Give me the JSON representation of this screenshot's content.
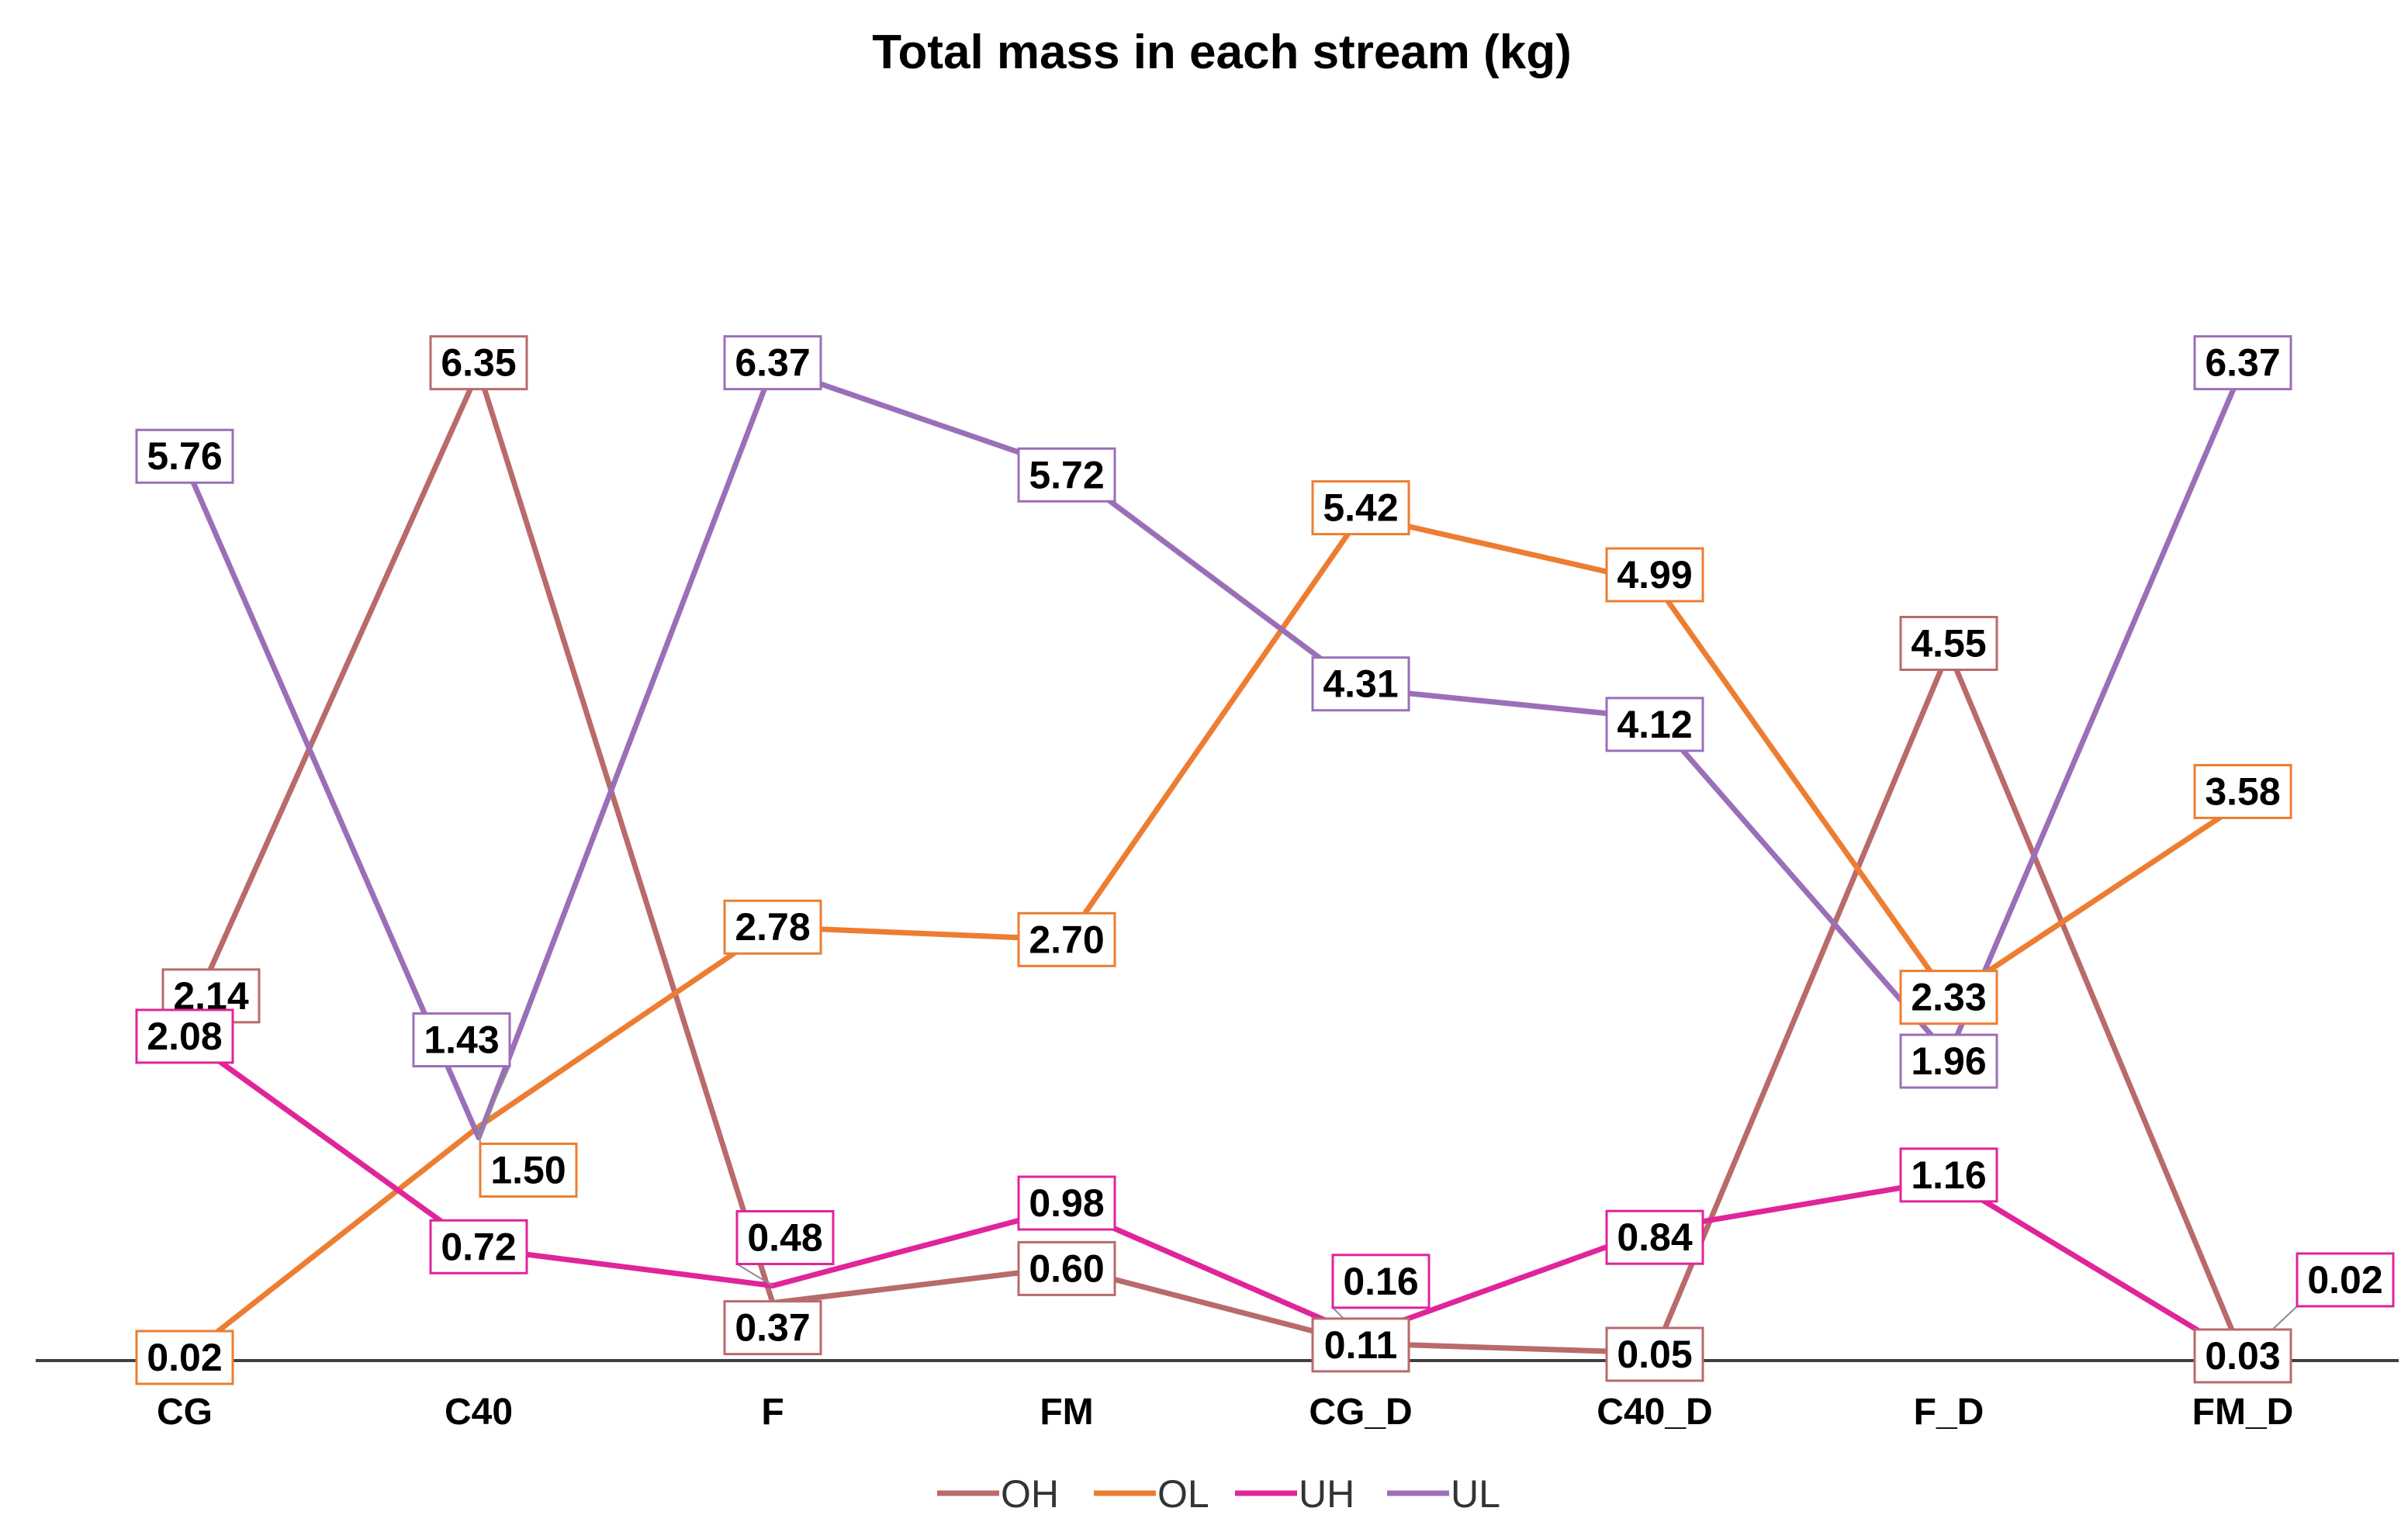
{
  "chart_data": {
    "type": "line",
    "title": "Total mass in each stream (kg)",
    "xlabel": "",
    "ylabel": "",
    "categories": [
      "CG",
      "C40",
      "F",
      "FM",
      "CG_D",
      "C40_D",
      "F_D",
      "FM_D"
    ],
    "ylim": [
      0,
      7.2
    ],
    "grid": false,
    "legend_position": "bottom-center",
    "series": [
      {
        "name": "OH",
        "color": "#B96A6A",
        "values": [
          2.14,
          6.35,
          0.37,
          0.6,
          0.11,
          0.05,
          4.55,
          0.03
        ],
        "labels": [
          "2.14",
          "6.35",
          "0.37",
          "0.60",
          "0.11",
          "0.05",
          "4.55",
          "0.03"
        ]
      },
      {
        "name": "OL",
        "color": "#ED7D31",
        "values": [
          0.02,
          1.5,
          2.78,
          2.7,
          5.42,
          4.99,
          2.33,
          3.58
        ],
        "labels": [
          "0.02",
          "1.50",
          "2.78",
          "2.70",
          "5.42",
          "4.99",
          "2.33",
          "3.58"
        ]
      },
      {
        "name": "UH",
        "color": "#E0249A",
        "values": [
          2.08,
          0.72,
          0.48,
          0.98,
          0.16,
          0.84,
          1.16,
          0.02
        ],
        "labels": [
          "2.08",
          "0.72",
          "0.48",
          "0.98",
          "0.16",
          "0.84",
          "1.16",
          "0.02"
        ]
      },
      {
        "name": "UL",
        "color": "#9B6FB8",
        "values": [
          5.76,
          1.43,
          6.37,
          5.72,
          4.31,
          4.12,
          1.96,
          6.37
        ],
        "labels": [
          "5.76",
          "1.43",
          "6.37",
          "5.72",
          "4.31",
          "4.12",
          "1.96",
          "6.37"
        ]
      }
    ]
  }
}
